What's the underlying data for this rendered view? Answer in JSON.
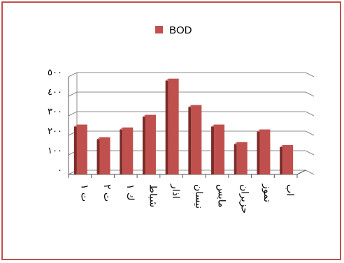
{
  "chart_data": {
    "type": "bar",
    "categories": [
      "ت ١",
      "ت ٢",
      "ك ١",
      "شباط",
      "اذار",
      "نيسان",
      "مايس",
      "حزيران",
      "تموز",
      "اب"
    ],
    "series": [
      {
        "name": "BOD",
        "values": [
          255,
          190,
          240,
          305,
          490,
          355,
          255,
          165,
          230,
          150
        ]
      }
    ],
    "y_ticks": [
      "٠",
      "١٠٠",
      "٢٠٠",
      "٣٠٠",
      "٤٠٠",
      "٥٠٠"
    ],
    "y_tick_values": [
      0,
      100,
      200,
      300,
      400,
      500
    ],
    "ylim": [
      0,
      500
    ],
    "grid": true,
    "legend_position": "top",
    "colors": {
      "bar_front": "#c0504d",
      "bar_side": "#7d2b28",
      "bar_top": "#d68a88",
      "frame_border": "#c0504d",
      "gridline": "#8c8c8c"
    }
  }
}
